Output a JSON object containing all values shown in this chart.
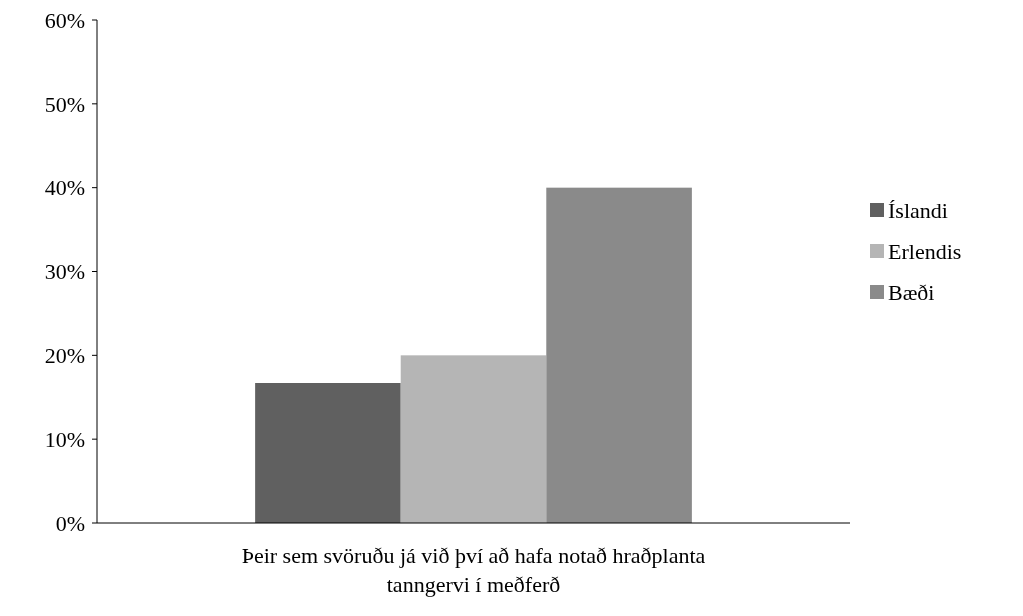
{
  "chart_data": {
    "type": "bar",
    "categories": [
      "Þeir sem svöruðu já við því að hafa notað hraðplanta tanngervi í meðferð"
    ],
    "series": [
      {
        "name": "Íslandi",
        "color": "#606060",
        "values": [
          16.7
        ]
      },
      {
        "name": "Erlendis",
        "color": "#b5b5b5",
        "values": [
          20
        ]
      },
      {
        "name": "Bæði",
        "color": "#8a8a8a",
        "values": [
          40
        ]
      }
    ],
    "ylim": [
      0,
      60
    ],
    "yticks": [
      {
        "value": 0,
        "label": "0%"
      },
      {
        "value": 10,
        "label": "10%"
      },
      {
        "value": 20,
        "label": "20%"
      },
      {
        "value": 30,
        "label": "30%"
      },
      {
        "value": 40,
        "label": "40%"
      },
      {
        "value": 50,
        "label": "50%"
      },
      {
        "value": 60,
        "label": "60%"
      }
    ],
    "grid": false,
    "legend": "right"
  }
}
